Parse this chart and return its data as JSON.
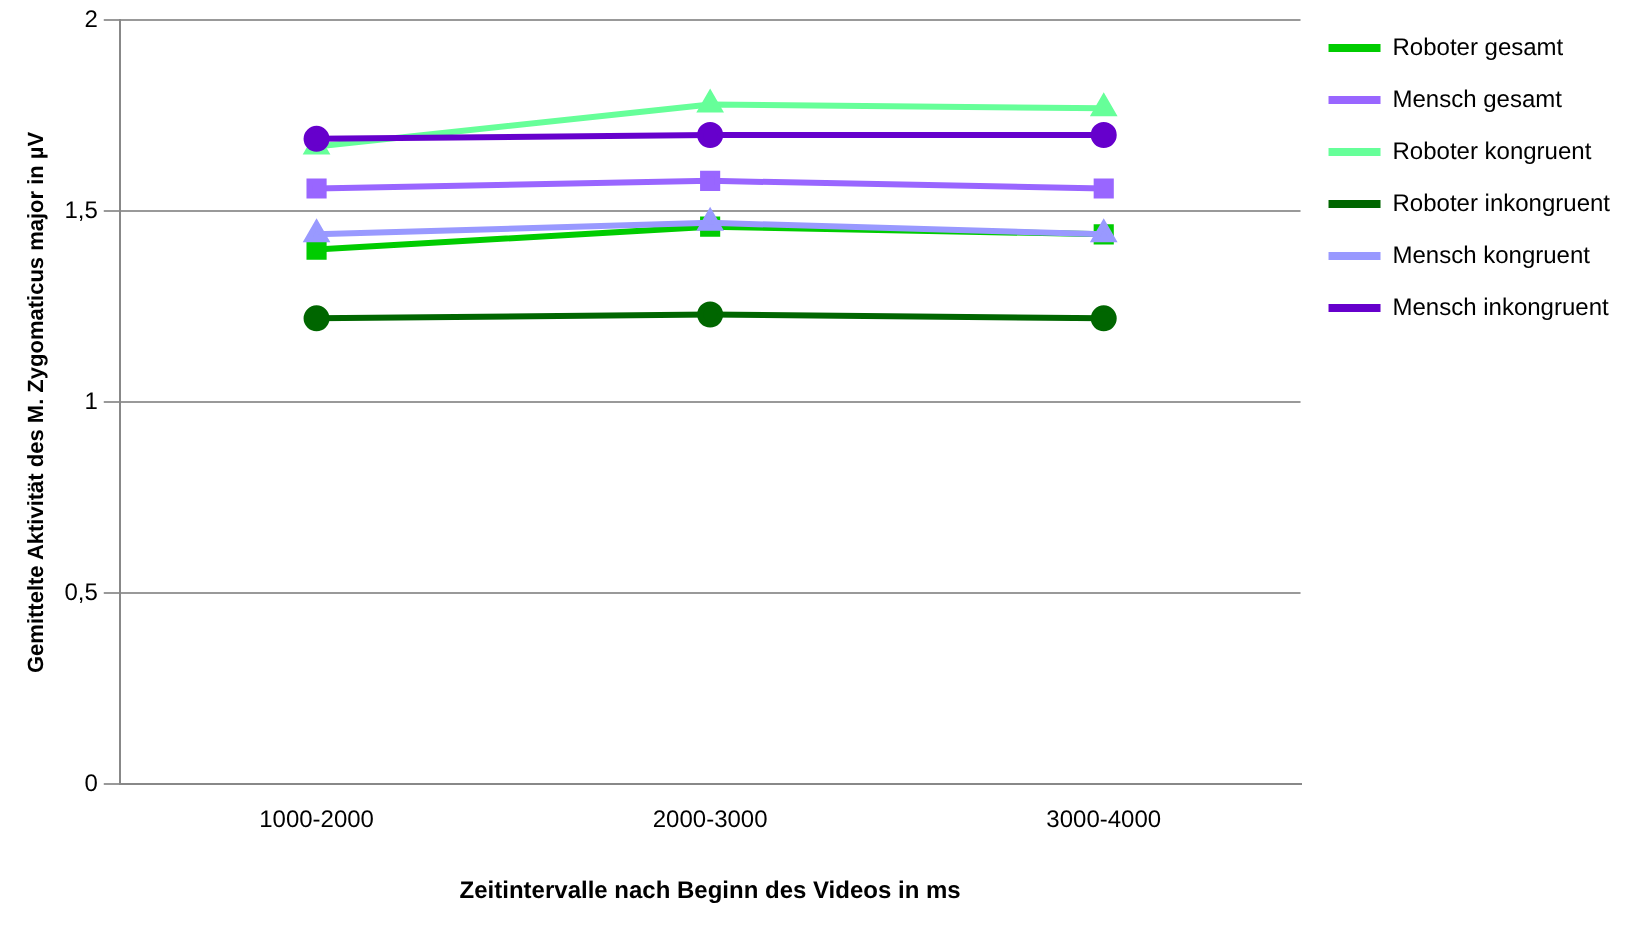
{
  "chart_data": {
    "type": "line",
    "xlabel": "Zeitintervalle nach Beginn des Videos in ms",
    "ylabel": "Gemittelte Aktivität des M. Zygomaticus major in µV",
    "categories": [
      "1000-2000",
      "2000-3000",
      "3000-4000"
    ],
    "series": [
      {
        "name": "Roboter gesamt",
        "color": "#00cc00",
        "marker": "square",
        "values": [
          1.4,
          1.46,
          1.44
        ]
      },
      {
        "name": "Mensch gesamt",
        "color": "#9966ff",
        "marker": "square",
        "values": [
          1.56,
          1.58,
          1.56
        ]
      },
      {
        "name": "Roboter kongruent",
        "color": "#66ff99",
        "marker": "triangle",
        "values": [
          1.67,
          1.78,
          1.77
        ]
      },
      {
        "name": "Roboter inkongruent",
        "color": "#006600",
        "marker": "circle",
        "values": [
          1.22,
          1.23,
          1.22
        ]
      },
      {
        "name": "Mensch kongruent",
        "color": "#9999ff",
        "marker": "triangle",
        "values": [
          1.44,
          1.47,
          1.44
        ]
      },
      {
        "name": "Mensch inkongruent",
        "color": "#6600cc",
        "marker": "circle",
        "values": [
          1.69,
          1.7,
          1.7
        ]
      }
    ],
    "ylim": [
      0,
      2
    ],
    "yticks": [
      0,
      {
        "value": 0.5,
        "label": "0,5"
      },
      1,
      {
        "value": 1.5,
        "label": "1,5"
      },
      2
    ],
    "grid": "y",
    "legend": "right"
  }
}
